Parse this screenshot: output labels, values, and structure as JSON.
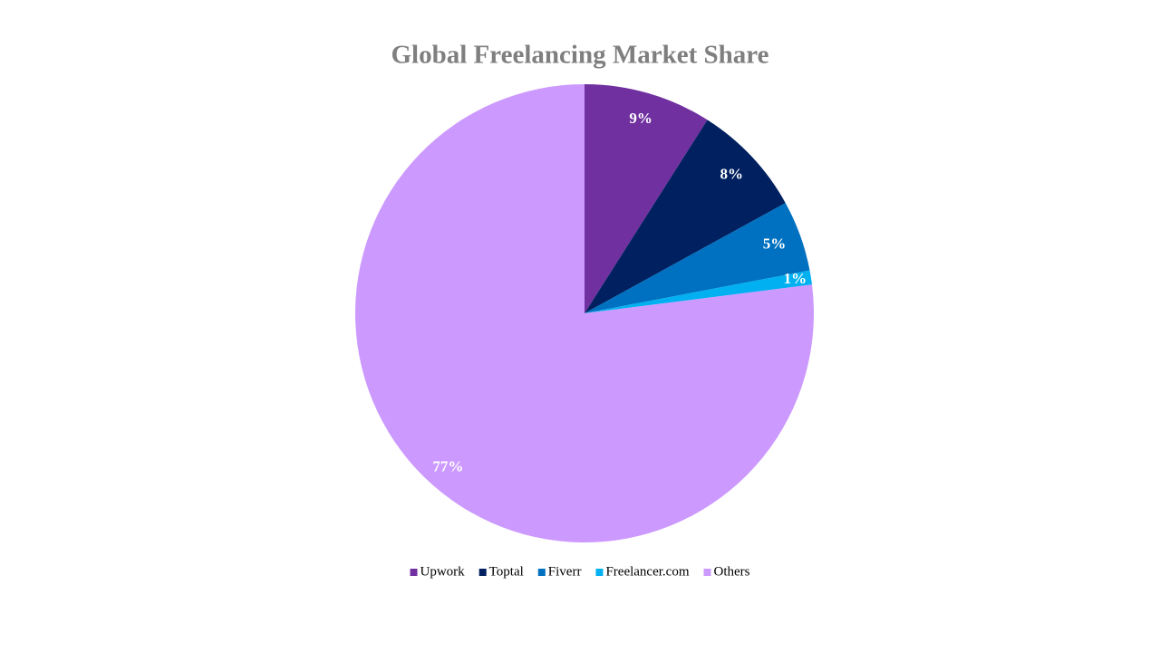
{
  "chart_data": {
    "type": "pie",
    "title": "Global Freelancing Market Share",
    "categories": [
      "Upwork",
      "Toptal",
      "Fiverr",
      "Freelancer.com",
      "Others"
    ],
    "values": [
      9,
      8,
      5,
      1,
      77
    ],
    "value_labels": [
      "9%",
      "8%",
      "5%",
      "1%",
      "77%"
    ],
    "colors": [
      "#7030a0",
      "#002060",
      "#0070c0",
      "#00b0f0",
      "#cc99ff"
    ],
    "legend": "bottom"
  }
}
